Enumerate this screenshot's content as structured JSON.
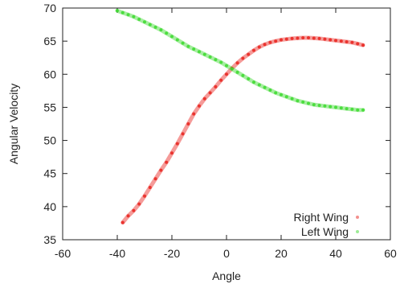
{
  "chart_data": {
    "type": "scatter",
    "title": "",
    "xlabel": "Angle",
    "ylabel": "Angular Velocity",
    "xlim": [
      -60,
      60
    ],
    "ylim": [
      35,
      70
    ],
    "xticks": [
      -60,
      -40,
      -20,
      0,
      20,
      40,
      60
    ],
    "yticks": [
      35,
      40,
      45,
      50,
      55,
      60,
      65,
      70
    ],
    "grid": false,
    "legend_position": "bottom-right",
    "series": [
      {
        "name": "Right Wing",
        "color": "#e8221c",
        "x": [
          -38,
          -36,
          -34,
          -32,
          -30,
          -28,
          -26,
          -24,
          -22,
          -20,
          -18,
          -16,
          -14,
          -12,
          -10,
          -8,
          -6,
          -4,
          -2,
          0,
          2,
          4,
          6,
          8,
          10,
          12,
          14,
          16,
          18,
          20,
          22,
          24,
          26,
          28,
          30,
          32,
          34,
          36,
          38,
          40,
          42,
          44,
          46,
          48,
          50
        ],
        "y": [
          37.6,
          38.6,
          39.4,
          40.4,
          41.6,
          42.9,
          44.2,
          45.5,
          46.7,
          48.1,
          49.5,
          51.0,
          52.5,
          54.0,
          55.2,
          56.3,
          57.2,
          58.1,
          59.1,
          60.0,
          60.9,
          61.7,
          62.4,
          63.0,
          63.6,
          64.1,
          64.5,
          64.8,
          65.0,
          65.2,
          65.3,
          65.4,
          65.45,
          65.5,
          65.5,
          65.45,
          65.4,
          65.3,
          65.2,
          65.1,
          65.0,
          64.9,
          64.8,
          64.6,
          64.4
        ]
      },
      {
        "name": "Left Wing",
        "color": "#3cd92e",
        "x": [
          -40,
          -38,
          -36,
          -34,
          -32,
          -30,
          -28,
          -26,
          -24,
          -22,
          -20,
          -18,
          -16,
          -14,
          -12,
          -10,
          -8,
          -6,
          -4,
          -2,
          0,
          2,
          4,
          6,
          8,
          10,
          12,
          14,
          16,
          18,
          20,
          22,
          24,
          26,
          28,
          30,
          32,
          34,
          36,
          38,
          40,
          42,
          44,
          46,
          48,
          50
        ],
        "y": [
          69.6,
          69.3,
          69.0,
          68.7,
          68.3,
          67.9,
          67.5,
          67.1,
          66.7,
          66.2,
          65.7,
          65.2,
          64.7,
          64.2,
          63.8,
          63.4,
          63.0,
          62.6,
          62.2,
          61.8,
          61.3,
          60.8,
          60.3,
          59.8,
          59.3,
          58.8,
          58.4,
          58.0,
          57.6,
          57.2,
          56.9,
          56.6,
          56.3,
          56.0,
          55.8,
          55.6,
          55.4,
          55.3,
          55.2,
          55.1,
          55.0,
          54.9,
          54.8,
          54.7,
          54.6,
          54.6
        ]
      }
    ]
  }
}
